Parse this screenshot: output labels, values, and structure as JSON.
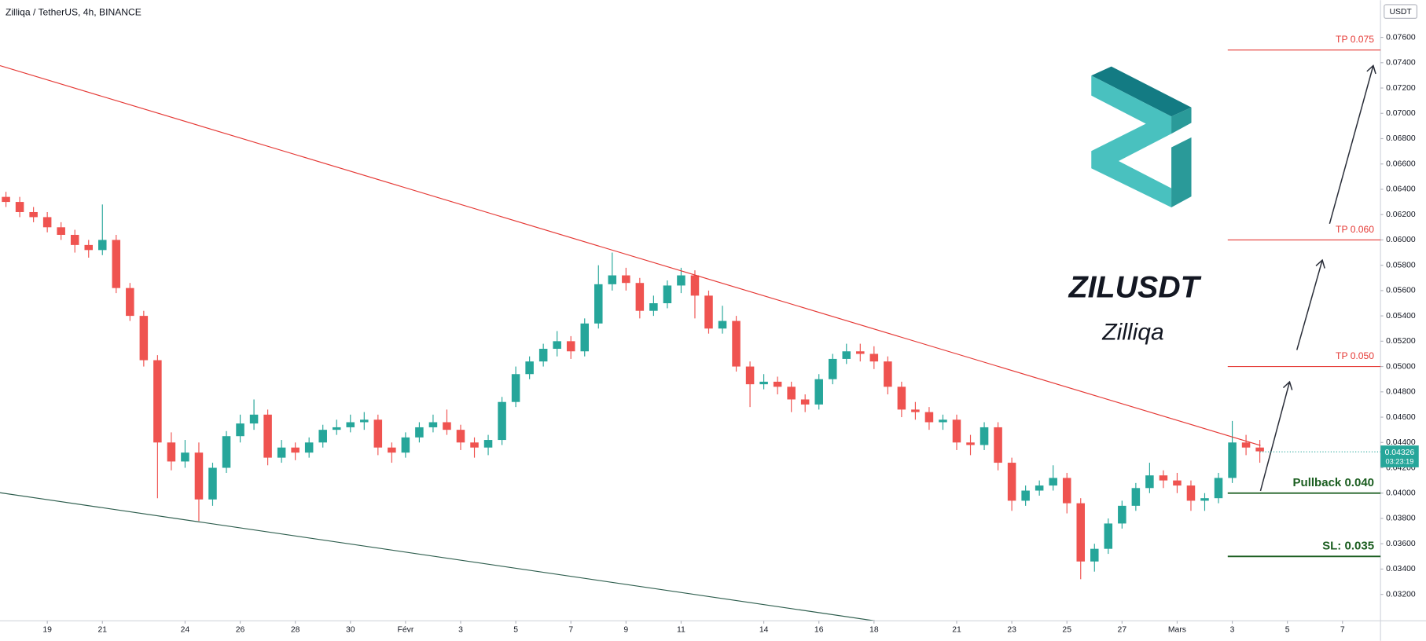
{
  "chart_data": {
    "type": "candlestick",
    "title": "Zilliqa / TetherUS, 4h, BINANCE",
    "symbol": "ZILUSDT",
    "name": "Zilliqa",
    "currency": "USDT",
    "up_color": "#26a69a",
    "down_color": "#ef5350",
    "x": [
      17.5,
      18,
      18.5,
      19,
      19.5,
      20,
      20.5,
      21,
      21.5,
      22,
      22.5,
      23,
      23.5,
      24,
      24.5,
      25,
      25.5,
      26,
      26.5,
      27,
      27.5,
      28,
      28.5,
      29,
      29.5,
      30,
      30.5,
      31,
      31.5,
      32,
      32.5,
      33,
      33.5,
      34,
      34.5,
      35,
      35.5,
      36,
      36.5,
      37,
      37.5,
      38,
      38.5,
      39,
      39.5,
      40,
      40.5,
      41,
      41.5,
      42,
      42.5,
      43,
      43.5,
      44,
      44.5,
      45,
      45.5,
      46,
      46.5,
      47,
      47.5,
      48,
      48.5,
      49,
      49.5,
      50,
      50.5,
      51,
      51.5,
      52,
      52.5,
      53,
      53.5,
      54,
      54.5,
      55,
      55.5,
      56,
      56.5,
      57,
      57.5,
      58,
      58.5,
      59,
      59.5,
      60,
      60.5,
      61,
      61.5,
      62,
      62.5,
      63
    ],
    "open": [
      0.0634,
      0.063,
      0.0622,
      0.0618,
      0.061,
      0.0604,
      0.0596,
      0.0592,
      0.06,
      0.0562,
      0.054,
      0.0505,
      0.044,
      0.0425,
      0.0432,
      0.0395,
      0.042,
      0.0445,
      0.0455,
      0.0462,
      0.0428,
      0.0436,
      0.0432,
      0.044,
      0.045,
      0.0452,
      0.0456,
      0.0458,
      0.0436,
      0.0432,
      0.0444,
      0.0452,
      0.0456,
      0.045,
      0.044,
      0.0436,
      0.0442,
      0.0472,
      0.0494,
      0.0504,
      0.0514,
      0.052,
      0.0512,
      0.0534,
      0.0565,
      0.0572,
      0.0566,
      0.0544,
      0.055,
      0.0564,
      0.0572,
      0.0556,
      0.053,
      0.0536,
      0.05,
      0.0486,
      0.0488,
      0.0484,
      0.0474,
      0.047,
      0.049,
      0.0506,
      0.0512,
      0.051,
      0.0504,
      0.0484,
      0.0466,
      0.0464,
      0.0456,
      0.0458,
      0.044,
      0.0438,
      0.0452,
      0.0424,
      0.0394,
      0.0402,
      0.0406,
      0.0412,
      0.0392,
      0.0346,
      0.0356,
      0.0376,
      0.039,
      0.0404,
      0.0414,
      0.041,
      0.0406,
      0.0394,
      0.0396,
      0.0412,
      0.044,
      0.0436
    ],
    "high": [
      0.0638,
      0.0634,
      0.0626,
      0.0622,
      0.0614,
      0.0608,
      0.06,
      0.0628,
      0.0604,
      0.0566,
      0.0544,
      0.0509,
      0.0448,
      0.0442,
      0.044,
      0.0424,
      0.0449,
      0.0462,
      0.0474,
      0.0466,
      0.0442,
      0.044,
      0.0444,
      0.0454,
      0.0458,
      0.0462,
      0.0464,
      0.0462,
      0.044,
      0.0448,
      0.0456,
      0.0462,
      0.0466,
      0.0454,
      0.0444,
      0.0446,
      0.0476,
      0.05,
      0.0508,
      0.0518,
      0.0528,
      0.0524,
      0.0538,
      0.058,
      0.059,
      0.0578,
      0.057,
      0.0556,
      0.0568,
      0.0578,
      0.0576,
      0.056,
      0.0548,
      0.054,
      0.0504,
      0.0494,
      0.0492,
      0.0488,
      0.0478,
      0.0494,
      0.051,
      0.0518,
      0.0518,
      0.0516,
      0.0508,
      0.0488,
      0.0472,
      0.0468,
      0.0462,
      0.0462,
      0.0446,
      0.0456,
      0.0456,
      0.0428,
      0.0406,
      0.041,
      0.0422,
      0.0416,
      0.0396,
      0.036,
      0.038,
      0.0394,
      0.0408,
      0.0424,
      0.0418,
      0.0416,
      0.041,
      0.04,
      0.0416,
      0.0457,
      0.0446,
      0.0442
    ],
    "low": [
      0.0626,
      0.0618,
      0.0614,
      0.0606,
      0.06,
      0.059,
      0.0586,
      0.0588,
      0.0558,
      0.0536,
      0.05,
      0.0396,
      0.0418,
      0.042,
      0.0378,
      0.039,
      0.0416,
      0.044,
      0.045,
      0.0422,
      0.0424,
      0.0426,
      0.0428,
      0.0436,
      0.0446,
      0.0448,
      0.045,
      0.043,
      0.0424,
      0.0428,
      0.044,
      0.0448,
      0.0446,
      0.0434,
      0.0428,
      0.043,
      0.0438,
      0.0468,
      0.049,
      0.05,
      0.0508,
      0.0506,
      0.0508,
      0.053,
      0.056,
      0.056,
      0.0538,
      0.054,
      0.0546,
      0.0558,
      0.0538,
      0.0526,
      0.0526,
      0.0496,
      0.0468,
      0.0482,
      0.0478,
      0.0464,
      0.0464,
      0.0466,
      0.0486,
      0.0502,
      0.0504,
      0.0498,
      0.0478,
      0.046,
      0.0458,
      0.045,
      0.045,
      0.0434,
      0.043,
      0.0434,
      0.0418,
      0.0386,
      0.039,
      0.0398,
      0.0402,
      0.0384,
      0.0332,
      0.0338,
      0.0352,
      0.0372,
      0.0386,
      0.04,
      0.0404,
      0.04,
      0.0386,
      0.0386,
      0.0392,
      0.0408,
      0.043,
      0.0424
    ],
    "close": [
      0.063,
      0.0622,
      0.0618,
      0.061,
      0.0604,
      0.0596,
      0.0592,
      0.06,
      0.0562,
      0.054,
      0.0505,
      0.044,
      0.0425,
      0.0432,
      0.0395,
      0.042,
      0.0445,
      0.0455,
      0.0462,
      0.0428,
      0.0436,
      0.0432,
      0.044,
      0.045,
      0.0452,
      0.0456,
      0.0458,
      0.0436,
      0.0432,
      0.0444,
      0.0452,
      0.0456,
      0.045,
      0.044,
      0.0436,
      0.0442,
      0.0472,
      0.0494,
      0.0504,
      0.0514,
      0.052,
      0.0512,
      0.0534,
      0.0565,
      0.0572,
      0.0566,
      0.0544,
      0.055,
      0.0564,
      0.0572,
      0.0556,
      0.053,
      0.0536,
      0.05,
      0.0486,
      0.0488,
      0.0484,
      0.0474,
      0.047,
      0.049,
      0.0506,
      0.0512,
      0.051,
      0.0504,
      0.0484,
      0.0466,
      0.0464,
      0.0456,
      0.0458,
      0.044,
      0.0438,
      0.0452,
      0.0424,
      0.0394,
      0.0402,
      0.0406,
      0.0412,
      0.0392,
      0.0346,
      0.0356,
      0.0376,
      0.039,
      0.0404,
      0.0414,
      0.041,
      0.0406,
      0.0394,
      0.0396,
      0.0412,
      0.044,
      0.0436,
      0.0433
    ],
    "xlim": [
      17.284,
      67.38
    ],
    "xticks": [
      19,
      21,
      24,
      26,
      28,
      30,
      {
        "value": 32,
        "label": "Févr"
      },
      {
        "value": 34,
        "label": "3"
      },
      {
        "value": 36,
        "label": "5"
      },
      {
        "value": 38,
        "label": "7"
      },
      {
        "value": 40,
        "label": "9"
      },
      {
        "value": 42,
        "label": "11"
      },
      {
        "value": 45,
        "label": "14"
      },
      {
        "value": 47,
        "label": "16"
      },
      {
        "value": 49,
        "label": "18"
      },
      {
        "value": 52,
        "label": "21"
      },
      {
        "value": 54,
        "label": "23"
      },
      {
        "value": 56,
        "label": "25"
      },
      {
        "value": 58,
        "label": "27"
      },
      {
        "value": 60,
        "label": "Mars"
      },
      {
        "value": 62,
        "label": "3"
      },
      {
        "value": 64,
        "label": "5"
      },
      {
        "value": 66,
        "label": "7"
      }
    ],
    "ylim": [
      0.02991,
      0.07894
    ],
    "yticks": [
      {
        "value": 0.032,
        "label": "0.03200"
      },
      {
        "value": 0.034,
        "label": "0.03400"
      },
      {
        "value": 0.036,
        "label": "0.03600"
      },
      {
        "value": 0.038,
        "label": "0.03800"
      },
      {
        "value": 0.04,
        "label": "0.04000"
      },
      {
        "value": 0.042,
        "label": "0.04200"
      },
      {
        "value": 0.044,
        "label": "0.04400"
      },
      {
        "value": 0.046,
        "label": "0.04600"
      },
      {
        "value": 0.048,
        "label": "0.04800"
      },
      {
        "value": 0.05,
        "label": "0.05000"
      },
      {
        "value": 0.052,
        "label": "0.05200"
      },
      {
        "value": 0.054,
        "label": "0.05400"
      },
      {
        "value": 0.056,
        "label": "0.05600"
      },
      {
        "value": 0.058,
        "label": "0.05800"
      },
      {
        "value": 0.06,
        "label": "0.06000"
      },
      {
        "value": 0.062,
        "label": "0.06200"
      },
      {
        "value": 0.064,
        "label": "0.06400"
      },
      {
        "value": 0.066,
        "label": "0.06600"
      },
      {
        "value": 0.068,
        "label": "0.06800"
      },
      {
        "value": 0.07,
        "label": "0.07000"
      },
      {
        "value": 0.072,
        "label": "0.07200"
      },
      {
        "value": 0.074,
        "label": "0.07400"
      },
      {
        "value": 0.076,
        "label": "0.07600"
      }
    ],
    "last_price": 0.04326,
    "countdown": "03:23:19",
    "levels": [
      {
        "label": "TP 0.075",
        "value": 0.075,
        "color": "#e53935"
      },
      {
        "label": "TP 0.060",
        "value": 0.06,
        "color": "#e53935"
      },
      {
        "label": "TP 0.050",
        "value": 0.05,
        "color": "#e53935"
      },
      {
        "label": "Pullback 0.040",
        "value": 0.04,
        "color": "#1b5e20"
      },
      {
        "label": "SL: 0.035",
        "value": 0.035,
        "color": "#1b5e20"
      }
    ]
  }
}
